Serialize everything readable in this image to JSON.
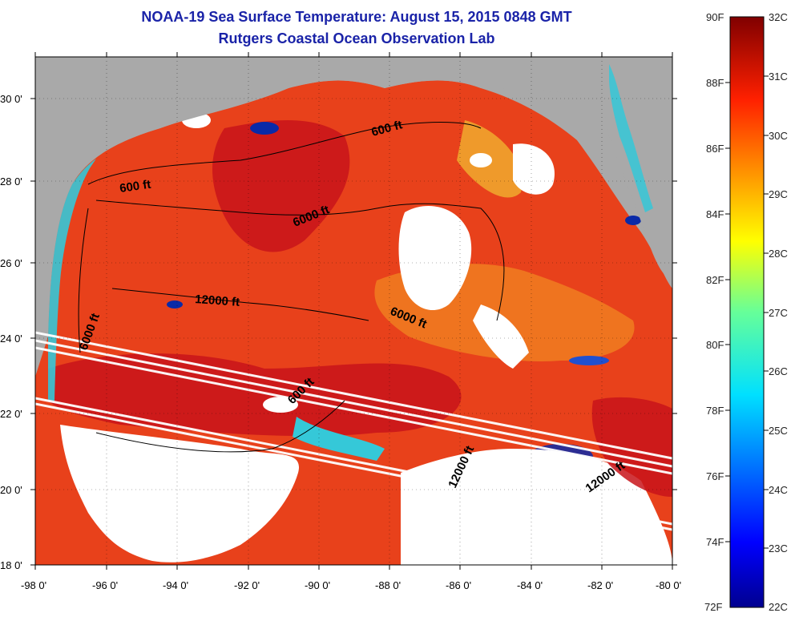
{
  "title": {
    "line1": "NOAA-19 Sea Surface Temperature:  August 15, 2015 0848 GMT",
    "line2": "Rutgers Coastal Ocean Observation Lab"
  },
  "colors": {
    "title": "#1a23a8",
    "land": "#a9a9a9",
    "cloud": "#ffffff",
    "warm_ocean": "#e8411b",
    "hot_ocean": "#c8141a",
    "cool_coast": "#35c8d8",
    "cold_coast": "#0a2aa8"
  },
  "map": {
    "x_ticks": [
      "-98 0'",
      "-96 0'",
      "-94 0'",
      "-92 0'",
      "-90 0'",
      "-88 0'",
      "-86 0'",
      "-84 0'",
      "-82 0'",
      "-80 0'"
    ],
    "y_ticks": [
      "30 0'",
      "28 0'",
      "26 0'",
      "24 0'",
      "22 0'",
      "20 0'",
      "18 0'"
    ],
    "contour_labels": [
      {
        "id": "c600a",
        "text": "600 ft"
      },
      {
        "id": "c600b",
        "text": "600 ft"
      },
      {
        "id": "c600c",
        "text": "600 ft"
      },
      {
        "id": "c6000a",
        "text": "6000 ft"
      },
      {
        "id": "c6000b",
        "text": "6000 ft"
      },
      {
        "id": "c6000c",
        "text": "6000 ft"
      },
      {
        "id": "c12000a",
        "text": "12000 ft"
      },
      {
        "id": "c12000b",
        "text": "12000 ft"
      },
      {
        "id": "c12000c",
        "text": "12000 ft"
      }
    ]
  },
  "colorbar": {
    "fahrenheit": [
      "90F",
      "88F",
      "86F",
      "84F",
      "82F",
      "80F",
      "78F",
      "76F",
      "74F",
      "72F"
    ],
    "celsius": [
      "32C",
      "31C",
      "30C",
      "29C",
      "28C",
      "27C",
      "26C",
      "25C",
      "24C",
      "23C",
      "22C"
    ],
    "min_c": 22,
    "max_c": 32
  }
}
